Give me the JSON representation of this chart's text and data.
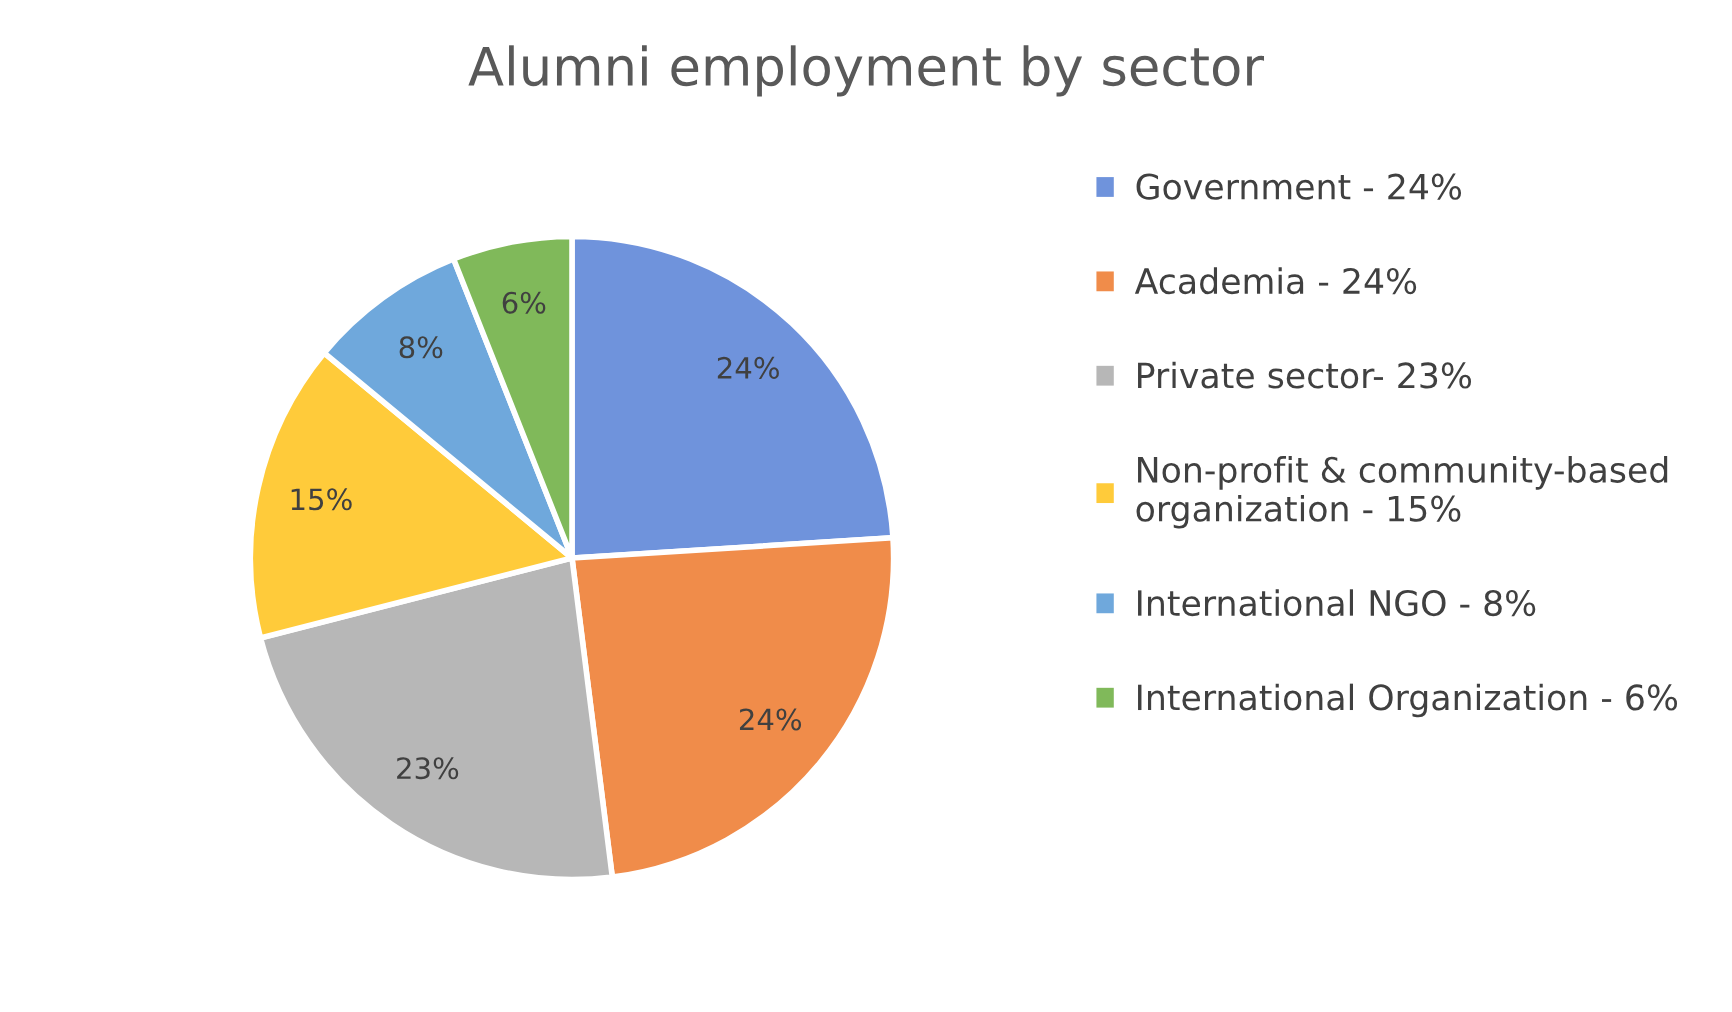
{
  "chart_data": {
    "type": "pie",
    "title": "Alumni employment by sector",
    "categories": [
      "Government - 24%",
      "Academia - 24%",
      "Private sector- 23%",
      "Non-profit & community-based\norganization - 15%",
      "International NGO - 8%",
      "International Organization - 6%"
    ],
    "values": [
      24,
      24,
      23,
      15,
      8,
      6
    ],
    "colors": [
      "#6f93dc",
      "#f08c4a",
      "#b7b7b7",
      "#ffcb3a",
      "#6fa8dc",
      "#80b95a"
    ],
    "value_labels": [
      "24%",
      "24%",
      "23%",
      "15%",
      "8%",
      "6%"
    ],
    "legend": "right"
  }
}
